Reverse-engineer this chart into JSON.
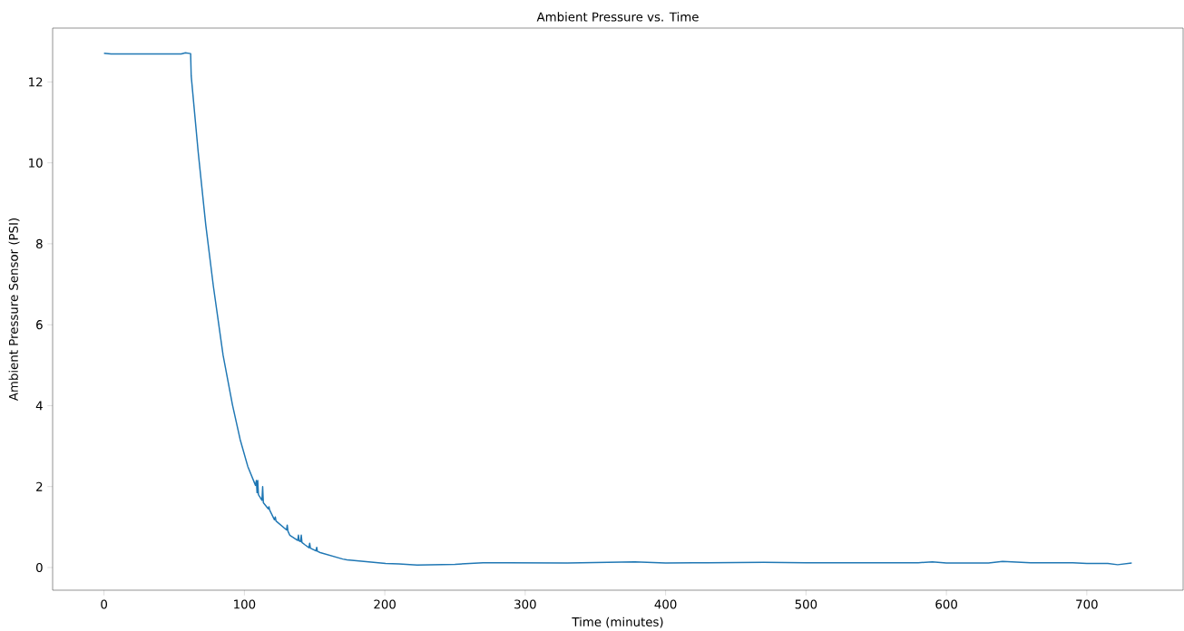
{
  "chart_data": {
    "type": "line",
    "title": "Ambient Pressure vs. Time",
    "xlabel": "Time (minutes)",
    "ylabel": "Ambient Pressure Sensor (PSI)",
    "x": [
      0,
      5,
      20,
      40,
      55,
      58,
      61.7,
      62.1,
      67.1,
      72.5,
      77.9,
      84.8,
      91.5,
      97,
      102.4,
      107.9,
      108.5,
      109,
      109.5,
      110,
      112.5,
      113,
      113.5,
      117,
      117.5,
      118,
      121.4,
      122,
      122.5,
      130,
      130.5,
      131,
      132.3,
      138,
      138.5,
      139,
      140,
      140.5,
      141,
      143.2,
      146,
      146.5,
      147,
      151,
      151.5,
      152,
      154,
      170,
      173,
      200.6,
      210,
      223,
      250,
      270,
      287,
      330,
      378,
      400,
      430,
      470,
      500,
      550,
      580,
      590,
      600,
      630,
      640,
      660,
      690,
      700,
      715,
      722,
      732
    ],
    "series": [
      {
        "color": "#1f77b4",
        "values": [
          12.71,
          12.69,
          12.69,
          12.69,
          12.69,
          12.72,
          12.7,
          12.15,
          10.26,
          8.46,
          6.95,
          5.25,
          4.02,
          3.16,
          2.5,
          2.03,
          2.15,
          1.85,
          2.15,
          1.8,
          1.66,
          2.0,
          1.6,
          1.45,
          1.5,
          1.42,
          1.18,
          1.25,
          1.15,
          0.93,
          1.05,
          0.9,
          0.8,
          0.67,
          0.8,
          0.66,
          0.64,
          0.8,
          0.62,
          0.56,
          0.49,
          0.6,
          0.48,
          0.41,
          0.5,
          0.4,
          0.37,
          0.21,
          0.19,
          0.1,
          0.09,
          0.06,
          0.08,
          0.12,
          0.12,
          0.11,
          0.14,
          0.11,
          0.12,
          0.13,
          0.12,
          0.12,
          0.12,
          0.14,
          0.11,
          0.11,
          0.15,
          0.12,
          0.12,
          0.1,
          0.1,
          0.07,
          0.11
        ]
      }
    ],
    "xlim": [
      -36.6,
      768.6
    ],
    "ylim": [
      -0.56,
      13.33
    ],
    "xticks": [
      0,
      100,
      200,
      300,
      400,
      500,
      600,
      700
    ],
    "yticks": [
      0,
      2,
      4,
      6,
      8,
      10,
      12
    ],
    "grid": false
  }
}
